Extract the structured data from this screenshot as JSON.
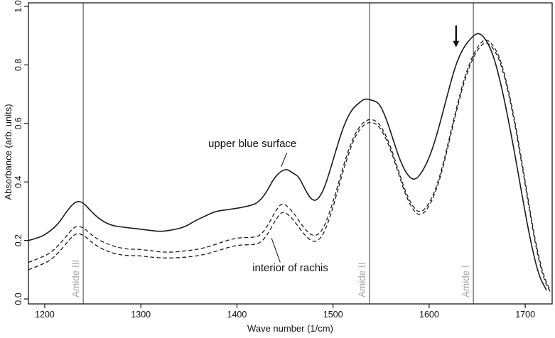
{
  "chart_data": {
    "type": "line",
    "title": "",
    "xlabel": "Wave number (1/cm)",
    "ylabel": "Absorbance (arb. units)",
    "xlim": [
      1183,
      1728
    ],
    "ylim": [
      0.0,
      1.0
    ],
    "xticks": [
      1200,
      1300,
      1400,
      1500,
      1600,
      1700
    ],
    "yticks": [
      0.0,
      0.2,
      0.4,
      0.6,
      0.8,
      1.0
    ],
    "grid": false,
    "frame": true,
    "legend_position": "none",
    "line_color": "#1a1a1a",
    "vline_color": "#3c3c3c",
    "vline_label_color": "#a8a8a8",
    "vlines": [
      {
        "x": 1240,
        "label": "Amide III"
      },
      {
        "x": 1538,
        "label": "Amide II"
      },
      {
        "x": 1646,
        "label": "Amide I"
      }
    ],
    "annotations": [
      {
        "type": "text",
        "text": "upper blue surface",
        "x": 1462,
        "y": 0.52,
        "anchor": "end",
        "pointer": {
          "x1": 1452,
          "y1": 0.5,
          "x2": 1446,
          "y2": 0.452
        }
      },
      {
        "type": "text",
        "text": "interior of rachis",
        "x": 1495,
        "y": 0.095,
        "anchor": "end",
        "pointer": {
          "x1": 1445,
          "y1": 0.125,
          "x2": 1436,
          "y2": 0.208
        }
      },
      {
        "type": "arrow",
        "x": 1628,
        "y_from": 0.935,
        "y_to": 0.86
      }
    ],
    "series": [
      {
        "name": "upper blue surface",
        "style": "solid",
        "x": [
          1183,
          1195,
          1205,
          1215,
          1225,
          1233,
          1240,
          1248,
          1258,
          1270,
          1283,
          1295,
          1308,
          1320,
          1332,
          1345,
          1358,
          1368,
          1378,
          1390,
          1400,
          1408,
          1415,
          1422,
          1430,
          1438,
          1445,
          1452,
          1458,
          1464,
          1470,
          1477,
          1483,
          1490,
          1497,
          1505,
          1512,
          1520,
          1527,
          1533,
          1540,
          1548,
          1555,
          1562,
          1570,
          1578,
          1585,
          1592,
          1600,
          1608,
          1616,
          1624,
          1630,
          1636,
          1643,
          1650,
          1656,
          1662,
          1668,
          1675,
          1682,
          1690,
          1698,
          1706,
          1714,
          1722
        ],
        "y": [
          0.2,
          0.21,
          0.23,
          0.26,
          0.31,
          0.335,
          0.33,
          0.3,
          0.27,
          0.25,
          0.245,
          0.24,
          0.235,
          0.23,
          0.235,
          0.245,
          0.27,
          0.285,
          0.3,
          0.305,
          0.31,
          0.315,
          0.32,
          0.33,
          0.36,
          0.41,
          0.435,
          0.445,
          0.43,
          0.42,
          0.38,
          0.34,
          0.335,
          0.37,
          0.44,
          0.53,
          0.6,
          0.65,
          0.67,
          0.685,
          0.68,
          0.67,
          0.62,
          0.55,
          0.47,
          0.42,
          0.405,
          0.43,
          0.48,
          0.56,
          0.66,
          0.76,
          0.82,
          0.86,
          0.89,
          0.91,
          0.9,
          0.87,
          0.82,
          0.73,
          0.62,
          0.48,
          0.33,
          0.19,
          0.08,
          0.03
        ]
      },
      {
        "name": "interior of rachis",
        "style": "dashed",
        "x": [
          1183,
          1195,
          1205,
          1215,
          1225,
          1232,
          1240,
          1250,
          1260,
          1272,
          1285,
          1298,
          1310,
          1322,
          1335,
          1348,
          1360,
          1372,
          1385,
          1395,
          1405,
          1415,
          1424,
          1432,
          1440,
          1447,
          1453,
          1460,
          1468,
          1476,
          1483,
          1490,
          1498,
          1506,
          1514,
          1522,
          1530,
          1537,
          1545,
          1552,
          1560,
          1568,
          1576,
          1584,
          1590,
          1597,
          1605,
          1613,
          1621,
          1629,
          1637,
          1645,
          1652,
          1659,
          1666,
          1673,
          1680,
          1688,
          1696,
          1704,
          1712,
          1720,
          1726
        ],
        "y": [
          0.125,
          0.14,
          0.155,
          0.185,
          0.225,
          0.25,
          0.245,
          0.215,
          0.195,
          0.18,
          0.17,
          0.17,
          0.165,
          0.16,
          0.16,
          0.165,
          0.17,
          0.18,
          0.195,
          0.205,
          0.21,
          0.21,
          0.215,
          0.25,
          0.3,
          0.33,
          0.315,
          0.29,
          0.25,
          0.22,
          0.215,
          0.24,
          0.31,
          0.4,
          0.49,
          0.56,
          0.6,
          0.615,
          0.61,
          0.58,
          0.52,
          0.44,
          0.36,
          0.31,
          0.295,
          0.31,
          0.36,
          0.44,
          0.55,
          0.66,
          0.76,
          0.83,
          0.87,
          0.89,
          0.87,
          0.83,
          0.75,
          0.63,
          0.48,
          0.32,
          0.17,
          0.07,
          0.03
        ]
      },
      {
        "name": "interior of rachis (second trace)",
        "style": "dashed",
        "x": [
          1183,
          1195,
          1205,
          1215,
          1225,
          1232,
          1240,
          1250,
          1260,
          1272,
          1285,
          1298,
          1310,
          1322,
          1335,
          1348,
          1360,
          1372,
          1385,
          1395,
          1405,
          1415,
          1424,
          1432,
          1440,
          1447,
          1453,
          1460,
          1468,
          1476,
          1483,
          1490,
          1498,
          1506,
          1514,
          1522,
          1530,
          1537,
          1545,
          1552,
          1560,
          1568,
          1576,
          1584,
          1590,
          1597,
          1605,
          1613,
          1621,
          1629,
          1637,
          1645,
          1652,
          1659,
          1666,
          1673,
          1680,
          1688,
          1696,
          1704,
          1712,
          1720,
          1726
        ],
        "y": [
          0.1,
          0.115,
          0.13,
          0.16,
          0.2,
          0.225,
          0.22,
          0.19,
          0.17,
          0.155,
          0.148,
          0.148,
          0.143,
          0.14,
          0.14,
          0.143,
          0.148,
          0.157,
          0.17,
          0.18,
          0.185,
          0.185,
          0.19,
          0.22,
          0.27,
          0.3,
          0.29,
          0.265,
          0.228,
          0.2,
          0.195,
          0.22,
          0.29,
          0.385,
          0.475,
          0.55,
          0.59,
          0.605,
          0.6,
          0.57,
          0.51,
          0.43,
          0.35,
          0.3,
          0.285,
          0.3,
          0.35,
          0.43,
          0.54,
          0.65,
          0.75,
          0.82,
          0.86,
          0.88,
          0.86,
          0.82,
          0.74,
          0.62,
          0.47,
          0.31,
          0.16,
          0.06,
          0.025
        ]
      }
    ]
  }
}
